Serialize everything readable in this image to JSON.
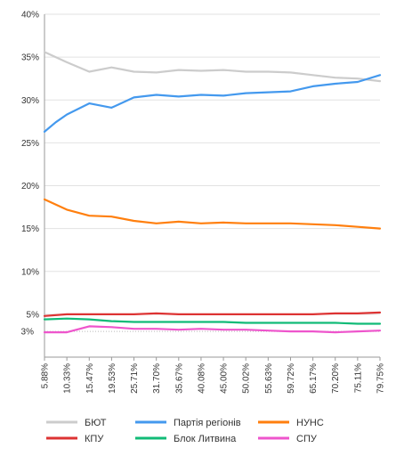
{
  "chart_data": {
    "type": "line",
    "x": [
      "5.88%",
      "10.33%",
      "15.47%",
      "19.53%",
      "25.71%",
      "31.70%",
      "35.67%",
      "40.08%",
      "45.00%",
      "50.02%",
      "55.63%",
      "59.72%",
      "65.17%",
      "70.20%",
      "75.11%",
      "79.75%"
    ],
    "ylim": [
      0,
      40
    ],
    "yticks": [
      {
        "value": 5,
        "label": "5%"
      },
      {
        "value": 10,
        "label": "10%"
      },
      {
        "value": 15,
        "label": "15%"
      },
      {
        "value": 20,
        "label": "20%"
      },
      {
        "value": 25,
        "label": "25%"
      },
      {
        "value": 30,
        "label": "30%"
      },
      {
        "value": 35,
        "label": "35%"
      },
      {
        "value": 40,
        "label": "40%"
      }
    ],
    "threshold": {
      "value": 3,
      "label": "3%"
    },
    "grid": true,
    "legend_position": "bottom",
    "series": [
      {
        "name": "БЮТ",
        "color": "#cccccc",
        "points": [
          [
            0,
            35.6
          ],
          [
            1,
            34.4
          ],
          [
            2,
            33.3
          ],
          [
            3,
            33.8
          ],
          [
            4,
            33.3
          ],
          [
            5,
            33.2
          ],
          [
            6,
            33.5
          ],
          [
            7,
            33.4
          ],
          [
            8,
            33.5
          ],
          [
            9,
            33.3
          ],
          [
            10,
            33.3
          ],
          [
            11,
            33.2
          ],
          [
            12,
            32.9
          ],
          [
            13,
            32.6
          ],
          [
            14,
            32.5
          ],
          [
            15,
            32.2
          ]
        ]
      },
      {
        "name": "Партія регіонів",
        "color": "#4499ee",
        "points": [
          [
            0,
            26.3
          ],
          [
            0.5,
            27.4
          ],
          [
            1,
            28.3
          ],
          [
            2,
            29.6
          ],
          [
            3,
            29.1
          ],
          [
            4,
            30.3
          ],
          [
            5,
            30.6
          ],
          [
            6,
            30.4
          ],
          [
            7,
            30.6
          ],
          [
            8,
            30.5
          ],
          [
            9,
            30.8
          ],
          [
            10,
            30.9
          ],
          [
            11,
            31.0
          ],
          [
            12,
            31.6
          ],
          [
            13,
            31.9
          ],
          [
            14,
            32.1
          ],
          [
            15,
            32.9
          ]
        ]
      },
      {
        "name": "НУНС",
        "color": "#ff7f0e",
        "points": [
          [
            0,
            18.4
          ],
          [
            1,
            17.2
          ],
          [
            2,
            16.5
          ],
          [
            3,
            16.4
          ],
          [
            4,
            15.9
          ],
          [
            5,
            15.6
          ],
          [
            6,
            15.8
          ],
          [
            7,
            15.6
          ],
          [
            8,
            15.7
          ],
          [
            9,
            15.6
          ],
          [
            10,
            15.6
          ],
          [
            11,
            15.6
          ],
          [
            12,
            15.5
          ],
          [
            13,
            15.4
          ],
          [
            14,
            15.2
          ],
          [
            15,
            15.0
          ]
        ]
      },
      {
        "name": "КПУ",
        "color": "#dd3333",
        "points": [
          [
            0,
            4.8
          ],
          [
            1,
            5.0
          ],
          [
            2,
            5.0
          ],
          [
            3,
            5.0
          ],
          [
            4,
            5.0
          ],
          [
            5,
            5.1
          ],
          [
            6,
            5.0
          ],
          [
            7,
            5.0
          ],
          [
            8,
            5.0
          ],
          [
            9,
            5.0
          ],
          [
            10,
            5.0
          ],
          [
            11,
            5.0
          ],
          [
            12,
            5.0
          ],
          [
            13,
            5.1
          ],
          [
            14,
            5.1
          ],
          [
            15,
            5.2
          ]
        ]
      },
      {
        "name": "Блок Литвина",
        "color": "#11bb77",
        "points": [
          [
            0,
            4.4
          ],
          [
            1,
            4.5
          ],
          [
            2,
            4.4
          ],
          [
            3,
            4.2
          ],
          [
            4,
            4.1
          ],
          [
            5,
            4.1
          ],
          [
            6,
            4.1
          ],
          [
            7,
            4.1
          ],
          [
            8,
            4.1
          ],
          [
            9,
            4.0
          ],
          [
            10,
            4.0
          ],
          [
            11,
            4.0
          ],
          [
            12,
            4.0
          ],
          [
            13,
            4.0
          ],
          [
            14,
            3.9
          ],
          [
            15,
            3.9
          ]
        ]
      },
      {
        "name": "СПУ",
        "color": "#ee55cc",
        "points": [
          [
            0,
            2.9
          ],
          [
            1,
            2.9
          ],
          [
            2,
            3.6
          ],
          [
            3,
            3.5
          ],
          [
            4,
            3.3
          ],
          [
            5,
            3.3
          ],
          [
            6,
            3.2
          ],
          [
            7,
            3.3
          ],
          [
            8,
            3.2
          ],
          [
            9,
            3.2
          ],
          [
            10,
            3.1
          ],
          [
            11,
            3.0
          ],
          [
            12,
            3.0
          ],
          [
            13,
            2.9
          ],
          [
            14,
            3.0
          ],
          [
            15,
            3.1
          ]
        ]
      }
    ],
    "legend_order": [
      "БЮТ",
      "Партія регіонів",
      "НУНС",
      "КПУ",
      "Блок Литвина",
      "СПУ"
    ]
  }
}
